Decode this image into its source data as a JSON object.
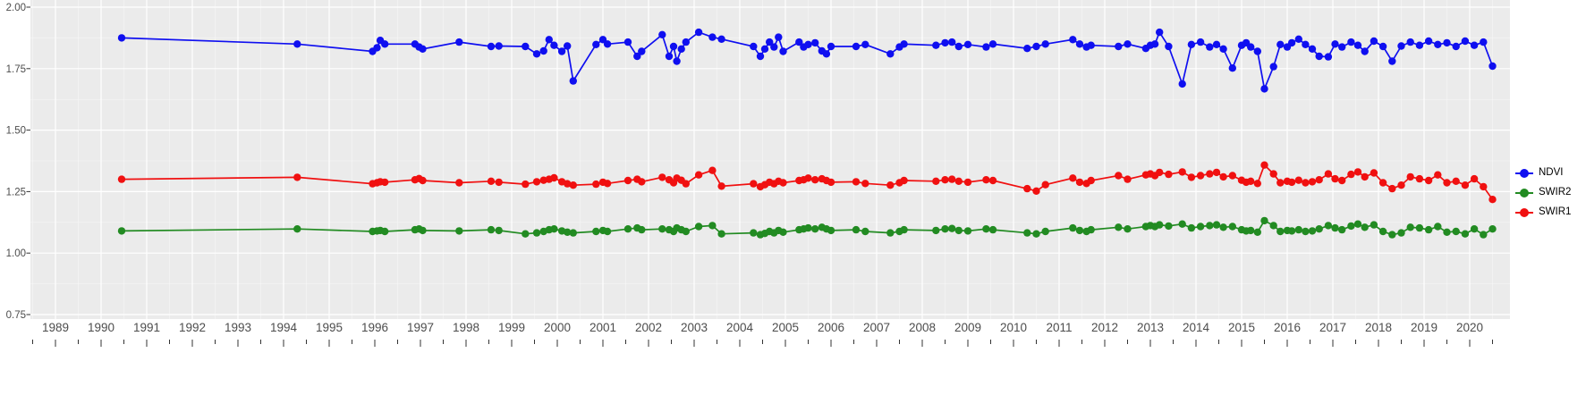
{
  "legend": {
    "items": [
      {
        "label": "NDVI",
        "color": "#0F0FF0"
      },
      {
        "label": "SWIR2",
        "color": "#228B22"
      },
      {
        "label": "SWIR1",
        "color": "#F01010"
      }
    ]
  },
  "chart_data": {
    "type": "line",
    "title": "",
    "xlabel": "",
    "ylabel": "",
    "xlim": [
      1988.45,
      2020.9
    ],
    "ylim": [
      0.69,
      2.03
    ],
    "grid": true,
    "legend_position": "right",
    "style": {
      "panel_bg": "#EBEBEB",
      "grid_major": "#FFFFFF",
      "grid_minor": "#F7F7F7",
      "tick_color": "#333333",
      "tick_label_color": "#4D4D4D"
    },
    "y_ticks": [
      2.0,
      1.75,
      1.5,
      1.25,
      1.0,
      0.75
    ],
    "y_tick_labels": [
      "2.00",
      "1.75",
      "1.50",
      "1.25",
      "1.00",
      "0.75"
    ],
    "x_ticks": [
      1989,
      1990,
      1991,
      1992,
      1993,
      1994,
      1995,
      1996,
      1997,
      1998,
      1999,
      2000,
      2001,
      2002,
      2003,
      2004,
      2005,
      2006,
      2007,
      2008,
      2009,
      2010,
      2011,
      2012,
      2013,
      2014,
      2015,
      2016,
      2017,
      2018,
      2019,
      2020
    ],
    "x": [
      1990.45,
      1994.3,
      1995.95,
      1996.05,
      1996.12,
      1996.22,
      1996.88,
      1996.97,
      1997.05,
      1997.85,
      1998.55,
      1998.72,
      1999.3,
      1999.55,
      1999.7,
      1999.82,
      1999.93,
      2000.1,
      2000.22,
      2000.35,
      2000.85,
      2001.0,
      2001.1,
      2001.55,
      2001.75,
      2001.85,
      2002.3,
      2002.45,
      2002.55,
      2002.62,
      2002.72,
      2002.82,
      2003.1,
      2003.4,
      2003.6,
      2004.3,
      2004.45,
      2004.55,
      2004.65,
      2004.75,
      2004.85,
      2004.95,
      2005.3,
      2005.4,
      2005.5,
      2005.65,
      2005.8,
      2005.9,
      2006.0,
      2006.55,
      2006.75,
      2007.3,
      2007.5,
      2007.6,
      2008.3,
      2008.5,
      2008.65,
      2008.8,
      2009.0,
      2009.4,
      2009.55,
      2010.3,
      2010.5,
      2010.7,
      2011.3,
      2011.45,
      2011.6,
      2011.7,
      2012.3,
      2012.5,
      2012.9,
      2013.0,
      2013.1,
      2013.2,
      2013.4,
      2013.7,
      2013.9,
      2014.1,
      2014.3,
      2014.45,
      2014.6,
      2014.8,
      2015.0,
      2015.1,
      2015.2,
      2015.35,
      2015.5,
      2015.7,
      2015.85,
      2016.0,
      2016.1,
      2016.25,
      2016.4,
      2016.55,
      2016.7,
      2016.9,
      2017.05,
      2017.2,
      2017.4,
      2017.55,
      2017.7,
      2017.9,
      2018.1,
      2018.3,
      2018.5,
      2018.7,
      2018.9,
      2019.1,
      2019.3,
      2019.5,
      2019.7,
      2019.9,
      2020.1,
      2020.3,
      2020.5
    ],
    "series": [
      {
        "name": "NDVI",
        "color": "#0F0FF0",
        "values": [
          1.875,
          1.85,
          1.82,
          1.835,
          1.865,
          1.85,
          1.85,
          1.838,
          1.83,
          1.858,
          1.84,
          1.842,
          1.84,
          1.81,
          1.822,
          1.868,
          1.845,
          1.82,
          1.842,
          1.7,
          1.848,
          1.868,
          1.85,
          1.858,
          1.8,
          1.82,
          1.888,
          1.8,
          1.84,
          1.78,
          1.83,
          1.858,
          1.898,
          1.878,
          1.87,
          1.84,
          1.8,
          1.83,
          1.858,
          1.838,
          1.878,
          1.82,
          1.858,
          1.838,
          1.848,
          1.855,
          1.822,
          1.81,
          1.84,
          1.84,
          1.848,
          1.81,
          1.838,
          1.85,
          1.845,
          1.855,
          1.858,
          1.84,
          1.848,
          1.838,
          1.85,
          1.832,
          1.84,
          1.85,
          1.868,
          1.85,
          1.838,
          1.845,
          1.84,
          1.85,
          1.832,
          1.845,
          1.85,
          1.898,
          1.84,
          1.688,
          1.848,
          1.858,
          1.838,
          1.848,
          1.83,
          1.752,
          1.845,
          1.855,
          1.838,
          1.82,
          1.668,
          1.758,
          1.848,
          1.838,
          1.855,
          1.87,
          1.848,
          1.83,
          1.8,
          1.798,
          1.85,
          1.838,
          1.858,
          1.845,
          1.82,
          1.862,
          1.84,
          1.78,
          1.842,
          1.858,
          1.845,
          1.862,
          1.848,
          1.855,
          1.84,
          1.862,
          1.845,
          1.858,
          1.76
        ]
      },
      {
        "name": "SWIR2",
        "color": "#228B22",
        "values": [
          1.09,
          1.098,
          1.088,
          1.09,
          1.092,
          1.088,
          1.095,
          1.098,
          1.092,
          1.09,
          1.095,
          1.092,
          1.078,
          1.082,
          1.088,
          1.095,
          1.098,
          1.09,
          1.085,
          1.082,
          1.088,
          1.092,
          1.088,
          1.098,
          1.102,
          1.095,
          1.098,
          1.095,
          1.088,
          1.102,
          1.095,
          1.088,
          1.108,
          1.112,
          1.078,
          1.082,
          1.075,
          1.08,
          1.088,
          1.082,
          1.092,
          1.085,
          1.095,
          1.098,
          1.102,
          1.098,
          1.105,
          1.098,
          1.092,
          1.095,
          1.088,
          1.082,
          1.088,
          1.095,
          1.092,
          1.098,
          1.1,
          1.092,
          1.09,
          1.098,
          1.095,
          1.082,
          1.078,
          1.088,
          1.102,
          1.092,
          1.088,
          1.095,
          1.105,
          1.098,
          1.108,
          1.112,
          1.108,
          1.115,
          1.11,
          1.118,
          1.102,
          1.108,
          1.112,
          1.115,
          1.105,
          1.108,
          1.095,
          1.09,
          1.092,
          1.085,
          1.132,
          1.112,
          1.088,
          1.092,
          1.09,
          1.095,
          1.088,
          1.09,
          1.098,
          1.112,
          1.102,
          1.095,
          1.11,
          1.118,
          1.105,
          1.115,
          1.088,
          1.075,
          1.082,
          1.105,
          1.102,
          1.095,
          1.108,
          1.085,
          1.088,
          1.078,
          1.098,
          1.075,
          1.098
        ]
      },
      {
        "name": "SWIR1",
        "color": "#F01010",
        "values": [
          1.3,
          1.308,
          1.282,
          1.286,
          1.29,
          1.288,
          1.298,
          1.303,
          1.295,
          1.286,
          1.292,
          1.288,
          1.28,
          1.29,
          1.296,
          1.3,
          1.306,
          1.29,
          1.282,
          1.276,
          1.28,
          1.288,
          1.283,
          1.295,
          1.3,
          1.29,
          1.308,
          1.298,
          1.286,
          1.305,
          1.296,
          1.282,
          1.318,
          1.336,
          1.272,
          1.282,
          1.27,
          1.278,
          1.288,
          1.282,
          1.292,
          1.286,
          1.295,
          1.298,
          1.305,
          1.298,
          1.302,
          1.295,
          1.288,
          1.29,
          1.283,
          1.276,
          1.286,
          1.295,
          1.292,
          1.298,
          1.3,
          1.292,
          1.288,
          1.298,
          1.295,
          1.262,
          1.252,
          1.278,
          1.305,
          1.288,
          1.283,
          1.295,
          1.315,
          1.3,
          1.318,
          1.322,
          1.315,
          1.328,
          1.32,
          1.33,
          1.308,
          1.315,
          1.322,
          1.328,
          1.31,
          1.315,
          1.296,
          1.288,
          1.292,
          1.283,
          1.358,
          1.322,
          1.286,
          1.292,
          1.288,
          1.296,
          1.286,
          1.29,
          1.298,
          1.322,
          1.302,
          1.295,
          1.32,
          1.33,
          1.31,
          1.326,
          1.286,
          1.262,
          1.276,
          1.31,
          1.302,
          1.295,
          1.318,
          1.286,
          1.292,
          1.276,
          1.302,
          1.27,
          1.218
        ]
      }
    ]
  }
}
